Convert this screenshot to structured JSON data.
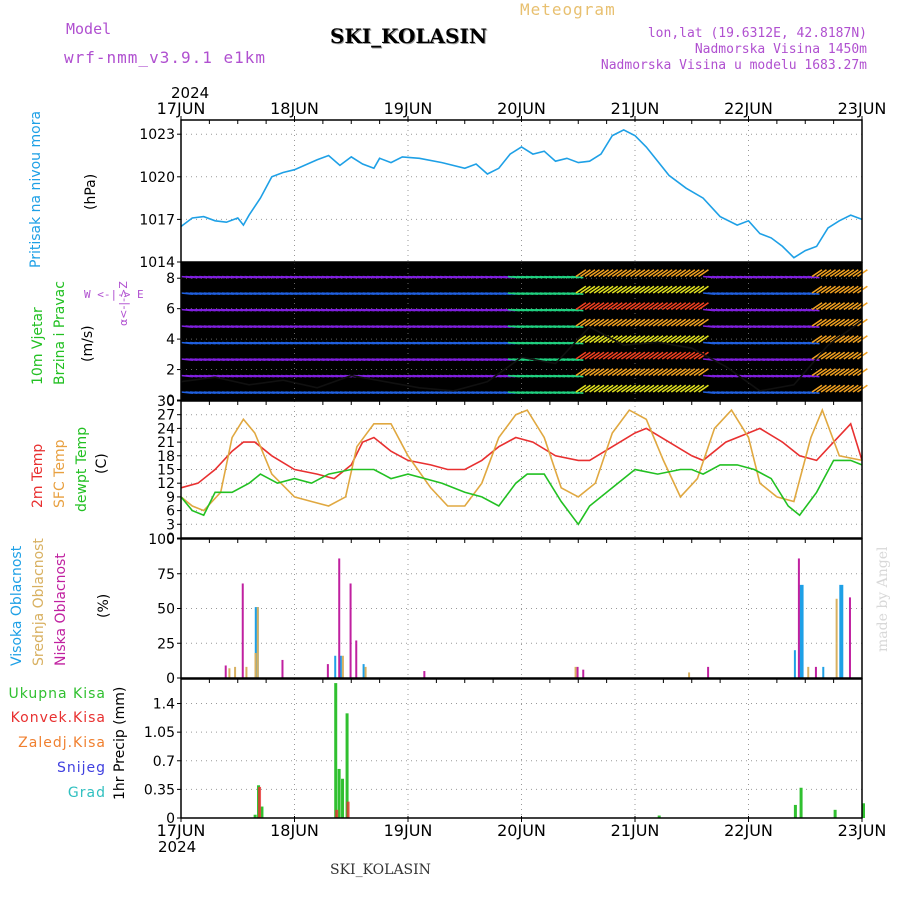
{
  "header": {
    "model_label": "Model",
    "model_value": "wrf-nmm_v3.9.1 e1km",
    "title": "SKI_KOLASIN",
    "meteogram_label": "Meteogram",
    "lonlat": "lon,lat (19.6312E, 42.8187N)",
    "altitude": "Nadmorska Visina 1450m",
    "model_altitude": "Nadmorska Visina u modelu 1683.27m",
    "year_top": "2024",
    "year_bottom": "2024",
    "footer_title": "SKI_KOLASIN",
    "credit": "made by Angel"
  },
  "colors": {
    "purple": "#b050d0",
    "pressure": "#1ea0e6",
    "wind_green": "#22c022",
    "cloud_blue": "#1ea0e6",
    "cloud_tan": "#d8b060",
    "cloud_magenta": "#c020a0",
    "rain_green": "#30c030",
    "conv_red": "#e83030",
    "frz_orange": "#f08030",
    "snow_blue": "#4040e0",
    "grad_teal": "#30c0c0"
  },
  "panel_labels": {
    "pressure": {
      "title": "Pritisak na nivou mora",
      "unit": "(hPa)"
    },
    "wind": {
      "title1": "10m Vjetar",
      "title2": "Brzina i Pravac",
      "unit": "(m/s)",
      "dir_ns": "α<-|->Z",
      "dir_we": "W <-|-> E"
    },
    "temp": {
      "t2m": "2m Temp",
      "sfc": "SFC Temp",
      "dew": "dewpt Temp",
      "unit": "(C)"
    },
    "cloud": {
      "high": "Visoka Oblacnost",
      "mid": "Srednja Oblacnost",
      "low": "Niska Oblacnost",
      "unit": "(%)"
    },
    "precip": {
      "total": "Ukupna Kisa",
      "conv": "Konvek.Kisa",
      "frz": "Zaledj.Kisa",
      "snow": "Snijeg",
      "grad": "Grad",
      "unit": "1hr Precip (mm)"
    }
  },
  "chart_data": [
    {
      "type": "line",
      "title": "",
      "ylabel": "(hPa)",
      "x_categories": [
        "17JUN",
        "18JUN",
        "19JUN",
        "20JUN",
        "21JUN",
        "22JUN",
        "23JUN"
      ],
      "yticks": [
        "1014",
        "1017",
        "1020",
        "1023"
      ],
      "ylim": [
        1014,
        1024
      ],
      "series": [
        {
          "name": "Pritisak na nivou mora",
          "x": [
            0,
            0.1,
            0.2,
            0.3,
            0.4,
            0.5,
            0.55,
            0.6,
            0.7,
            0.8,
            0.9,
            1.0,
            1.2,
            1.3,
            1.4,
            1.5,
            1.6,
            1.7,
            1.75,
            1.85,
            1.95,
            2.1,
            2.3,
            2.5,
            2.6,
            2.7,
            2.8,
            2.9,
            3.0,
            3.1,
            3.2,
            3.3,
            3.4,
            3.5,
            3.6,
            3.7,
            3.8,
            3.9,
            4.0,
            4.1,
            4.2,
            4.3,
            4.45,
            4.6,
            4.75,
            4.9,
            5.0,
            5.1,
            5.2,
            5.3,
            5.4,
            5.5,
            5.6,
            5.7,
            5.8,
            5.9,
            6.0
          ],
          "values": [
            1016.5,
            1017.1,
            1017.2,
            1016.9,
            1016.8,
            1017.1,
            1016.6,
            1017.3,
            1018.5,
            1020.0,
            1020.3,
            1020.5,
            1021.2,
            1021.5,
            1020.8,
            1021.4,
            1020.9,
            1020.6,
            1021.3,
            1021.0,
            1021.4,
            1021.3,
            1021.0,
            1020.6,
            1020.9,
            1020.2,
            1020.6,
            1021.6,
            1022.1,
            1021.6,
            1021.8,
            1021.1,
            1021.3,
            1021.0,
            1021.1,
            1021.6,
            1022.9,
            1023.3,
            1022.9,
            1022.1,
            1021.1,
            1020.1,
            1019.2,
            1018.5,
            1017.2,
            1016.6,
            1016.9,
            1016.0,
            1015.7,
            1015.1,
            1014.3,
            1014.8,
            1015.1,
            1016.4,
            1016.9,
            1017.3,
            1017.0
          ]
        }
      ]
    },
    {
      "type": "line",
      "title": "",
      "ylabel": "(m/s)",
      "x_categories": [
        "17JUN",
        "18JUN",
        "19JUN",
        "20JUN",
        "21JUN",
        "22JUN",
        "23JUN"
      ],
      "yticks": [
        "0",
        "2",
        "4",
        "6",
        "8"
      ],
      "ylim": [
        0,
        9
      ],
      "series": [
        {
          "name": "10m Vjetar",
          "x": [
            0,
            0.3,
            0.6,
            0.9,
            1.2,
            1.5,
            1.8,
            2.1,
            2.4,
            2.7,
            3.0,
            3.3,
            3.6,
            3.9,
            4.2,
            4.5,
            4.8,
            5.1,
            5.4,
            5.7,
            6.0
          ],
          "values": [
            1.2,
            1.5,
            1.0,
            1.3,
            0.8,
            1.6,
            1.2,
            0.8,
            0.6,
            1.2,
            2.8,
            2.4,
            4.8,
            3.6,
            3.8,
            3.4,
            2.2,
            0.6,
            1.0,
            3.6,
            5.2
          ]
        }
      ]
    },
    {
      "type": "line",
      "title": "",
      "ylabel": "(C)",
      "x_categories": [
        "17JUN",
        "18JUN",
        "19JUN",
        "20JUN",
        "21JUN",
        "22JUN",
        "23JUN"
      ],
      "yticks": [
        "0",
        "3",
        "6",
        "9",
        "12",
        "15",
        "18",
        "21",
        "24",
        "27",
        "30"
      ],
      "ylim": [
        0,
        30
      ],
      "series": [
        {
          "name": "2m Temp",
          "x": [
            0,
            0.15,
            0.3,
            0.45,
            0.55,
            0.65,
            0.8,
            1.0,
            1.2,
            1.35,
            1.5,
            1.6,
            1.7,
            1.85,
            2.0,
            2.2,
            2.35,
            2.5,
            2.65,
            2.8,
            2.95,
            3.1,
            3.3,
            3.5,
            3.6,
            3.8,
            4.0,
            4.1,
            4.3,
            4.5,
            4.6,
            4.8,
            5.0,
            5.1,
            5.3,
            5.45,
            5.6,
            5.75,
            5.9,
            6.0
          ],
          "values": [
            11,
            12,
            15,
            19,
            21,
            21,
            18,
            15,
            14,
            13,
            16,
            21,
            22,
            19,
            17,
            16,
            15,
            15,
            17,
            20,
            22,
            21,
            18,
            17,
            17,
            20,
            23,
            24,
            21,
            18,
            17,
            21,
            23,
            24,
            21,
            18,
            17,
            21,
            25,
            17
          ]
        },
        {
          "name": "SFC Temp",
          "x": [
            0,
            0.1,
            0.2,
            0.35,
            0.45,
            0.55,
            0.65,
            0.8,
            1.0,
            1.15,
            1.3,
            1.45,
            1.55,
            1.7,
            1.85,
            2.0,
            2.2,
            2.35,
            2.5,
            2.65,
            2.8,
            2.95,
            3.05,
            3.2,
            3.35,
            3.5,
            3.65,
            3.8,
            3.95,
            4.1,
            4.25,
            4.4,
            4.55,
            4.7,
            4.85,
            5.0,
            5.1,
            5.25,
            5.4,
            5.55,
            5.65,
            5.8,
            6.0
          ],
          "values": [
            9,
            7,
            6,
            10,
            22,
            26,
            23,
            14,
            9,
            8,
            7,
            9,
            20,
            25,
            25,
            18,
            11,
            7,
            7,
            12,
            22,
            27,
            28,
            22,
            11,
            9,
            12,
            23,
            28,
            26,
            17,
            9,
            13,
            24,
            28,
            22,
            12,
            9,
            8,
            22,
            28,
            18,
            17
          ]
        },
        {
          "name": "dewpt Temp",
          "x": [
            0,
            0.1,
            0.2,
            0.3,
            0.45,
            0.6,
            0.7,
            0.85,
            1.0,
            1.15,
            1.3,
            1.5,
            1.7,
            1.85,
            2.0,
            2.15,
            2.3,
            2.5,
            2.65,
            2.8,
            2.95,
            3.05,
            3.2,
            3.35,
            3.5,
            3.6,
            3.8,
            4.0,
            4.2,
            4.4,
            4.5,
            4.6,
            4.75,
            4.9,
            5.05,
            5.2,
            5.35,
            5.45,
            5.6,
            5.75,
            5.9,
            6.0
          ],
          "values": [
            9,
            6,
            5,
            10,
            10,
            12,
            14,
            12,
            13,
            12,
            14,
            15,
            15,
            13,
            14,
            13,
            12,
            10,
            9,
            7,
            12,
            14,
            14,
            8,
            3,
            7,
            11,
            15,
            14,
            15,
            15,
            14,
            16,
            16,
            15,
            13,
            7,
            5,
            10,
            17,
            17,
            16
          ]
        }
      ]
    },
    {
      "type": "bar",
      "title": "",
      "ylabel": "(%)",
      "x_categories": [
        "17JUN",
        "18JUN",
        "19JUN",
        "20JUN",
        "21JUN",
        "22JUN",
        "23JUN"
      ],
      "yticks": [
        "0",
        "25",
        "50",
        "75",
        "100"
      ],
      "ylim": [
        0,
        100
      ],
      "series": [
        {
          "name": "Visoka Oblacnost",
          "x": [
            0.65,
            1.35,
            1.4,
            1.6,
            5.4,
            5.45,
            5.65,
            5.8
          ],
          "values": [
            51,
            16,
            16,
            10,
            20,
            67,
            8,
            67
          ]
        },
        {
          "name": "Srednja Oblacnost",
          "x": [
            0.4,
            0.45,
            0.55,
            0.63,
            0.65,
            1.4,
            1.6,
            3.45,
            4.45,
            5.5,
            5.75
          ],
          "values": [
            7,
            8,
            8,
            18,
            51,
            16,
            8,
            8,
            4,
            8,
            57
          ]
        },
        {
          "name": "Niska Oblacnost",
          "x": [
            0.35,
            0.5,
            0.85,
            1.25,
            1.35,
            1.45,
            1.5,
            2.1,
            3.45,
            3.5,
            4.6,
            5.4,
            5.55,
            5.85
          ],
          "values": [
            9,
            68,
            13,
            10,
            86,
            68,
            27,
            5,
            8,
            6,
            8,
            86,
            8,
            58
          ]
        }
      ]
    },
    {
      "type": "bar",
      "title": "",
      "ylabel": "1hr Precip (mm)",
      "x_categories": [
        "17JUN",
        "18JUN",
        "19JUN",
        "20JUN",
        "21JUN",
        "22JUN",
        "23JUN"
      ],
      "yticks": [
        "0",
        "0.35",
        "0.7",
        "1.05",
        "1.4"
      ],
      "ylim": [
        0,
        1.7
      ],
      "series": [
        {
          "name": "Ukupna Kisa",
          "x": [
            0.64,
            0.67,
            0.7,
            1.35,
            1.38,
            1.41,
            1.45,
            4.2,
            5.4,
            5.45,
            5.75,
            6.0
          ],
          "values": [
            0.04,
            0.4,
            0.14,
            1.65,
            0.6,
            0.48,
            1.28,
            0.03,
            0.16,
            0.37,
            0.1,
            0.18
          ]
        },
        {
          "name": "Konvek.Kisa",
          "x": [
            0.67,
            1.35,
            1.45
          ],
          "values": [
            0.38,
            0.1,
            0.2
          ]
        }
      ]
    }
  ]
}
